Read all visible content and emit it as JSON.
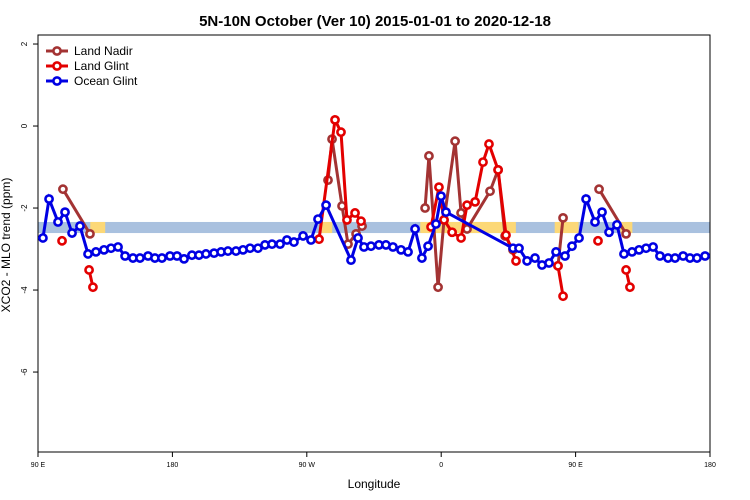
{
  "chart_data": {
    "type": "line",
    "title": "5N-10N October (Ver 10)   2015-01-01 to 2020-12-18",
    "xlabel": "Longitude",
    "ylabel": "XCO2 - MLO trend (ppm)",
    "xlim": [
      90,
      540
    ],
    "xticks": [
      {
        "value": 90,
        "label": "90 E"
      },
      180,
      {
        "value": 270,
        "label": "90 W"
      },
      {
        "value": 360,
        "label": "0"
      },
      {
        "value": 450,
        "label": "90 E"
      },
      {
        "value": 540,
        "label": "180"
      }
    ],
    "ylim": [
      -7.95,
      2.22
    ],
    "yticks": [
      -6,
      -4,
      -2,
      0,
      2
    ],
    "legend": "top-left",
    "band": {
      "ylim": [
        -2.61,
        -2.34
      ],
      "color": "#a9c1df",
      "highlight_color": "#fcd877",
      "highlights": [
        [
          125,
          135
        ],
        [
          280,
          287
        ],
        [
          346,
          410
        ],
        [
          436,
          452
        ],
        [
          480,
          488
        ]
      ]
    },
    "series": [
      {
        "name": "Land Nadir",
        "color": "#a33333",
        "x": [
          106.7,
          124.8,
          null,
          284.2,
          286.9,
          293.6,
          297.6,
          303,
          307,
          null,
          349.2,
          351.8,
          357.9,
          361.9,
          369.3,
          373.3,
          377.3,
          392.7,
          398.1,
          402.8,
          408.1,
          null,
          438.2,
          441.6,
          null,
          465.7,
          483.8
        ],
        "values": [
          -1.54,
          -2.63,
          null,
          -1.32,
          -0.32,
          -1.95,
          -2.88,
          -2.63,
          -2.44,
          null,
          -2.0,
          -0.73,
          -3.93,
          -2.29,
          -0.37,
          -2.12,
          -2.51,
          -1.59,
          -1.07,
          -2.68,
          -3.02,
          null,
          -3.41,
          -2.24,
          null,
          -1.54,
          -2.63
        ]
      },
      {
        "name": "Land Glint",
        "color": "#e30000",
        "x": [
          106.1,
          null,
          124.2,
          126.8,
          null,
          278.2,
          288.9,
          292.9,
          296.9,
          302.3,
          306.3,
          null,
          353.2,
          358.5,
          361.9,
          367.3,
          373.3,
          377.3,
          382.7,
          388,
          392,
          398.1,
          403.4,
          410.1,
          null,
          438.2,
          441.6,
          null,
          465,
          null,
          483.8,
          486.4
        ],
        "values": [
          -2.8,
          null,
          -3.51,
          -3.93,
          null,
          -2.76,
          0.15,
          -0.15,
          -2.29,
          -2.12,
          -2.32,
          null,
          -2.46,
          -1.49,
          -2.29,
          -2.59,
          -2.73,
          -1.93,
          -1.85,
          -0.88,
          -0.44,
          -1.07,
          -2.66,
          -3.29,
          null,
          -3.41,
          -4.15,
          null,
          -2.8,
          null,
          -3.51,
          -3.93
        ]
      },
      {
        "name": "Ocean Glint",
        "color": "#0000e3",
        "x": [
          93.3,
          97.4,
          103.4,
          108.1,
          112.8,
          118.1,
          123.5,
          128.8,
          134.2,
          138.9,
          143.6,
          148.3,
          153.6,
          158.3,
          163.7,
          168.3,
          173,
          178.4,
          183.1,
          187.8,
          193.1,
          197.8,
          202.5,
          207.9,
          212.6,
          217.2,
          222.6,
          227.3,
          232,
          237.3,
          242,
          246.7,
          252.1,
          256.7,
          261.4,
          267.5,
          272.8,
          277.5,
          282.9,
          299.6,
          304.3,
          308.3,
          313,
          318.3,
          323,
          327.7,
          333.1,
          337.8,
          342.5,
          347.1,
          351.2,
          356.5,
          359.9,
          363.2,
          408.1,
          412.1,
          417.5,
          422.8,
          427.5,
          432.2,
          436.9,
          442.9,
          447.6,
          452.3,
          457,
          463,
          467.7,
          472.4,
          477.7,
          482.4,
          487.8,
          492.5,
          497.2,
          501.9,
          506.5,
          511.9,
          516.6,
          522,
          526.6,
          531.3,
          536.7
        ],
        "values": [
          -2.73,
          -1.78,
          -2.34,
          -2.1,
          -2.61,
          -2.44,
          -3.12,
          -3.07,
          -3.02,
          -2.98,
          -2.95,
          -3.17,
          -3.22,
          -3.22,
          -3.17,
          -3.22,
          -3.22,
          -3.17,
          -3.17,
          -3.24,
          -3.15,
          -3.15,
          -3.12,
          -3.1,
          -3.07,
          -3.05,
          -3.05,
          -3.02,
          -2.98,
          -2.98,
          -2.9,
          -2.88,
          -2.88,
          -2.78,
          -2.83,
          -2.68,
          -2.78,
          -2.27,
          -1.93,
          -3.27,
          -2.73,
          -2.95,
          -2.93,
          -2.9,
          -2.9,
          -2.95,
          -3.02,
          -3.07,
          -2.51,
          -3.22,
          -2.93,
          -2.39,
          -1.71,
          -2.1,
          -2.98,
          -2.98,
          -3.29,
          -3.22,
          -3.39,
          -3.34,
          -3.07,
          -3.17,
          -2.93,
          -2.73,
          -1.78,
          -2.34,
          -2.1,
          -2.59,
          -2.41,
          -3.12,
          -3.07,
          -3.02,
          -2.98,
          -2.95,
          -3.17,
          -3.22,
          -3.22,
          -3.17,
          -3.22,
          -3.22,
          -3.17
        ]
      }
    ]
  }
}
